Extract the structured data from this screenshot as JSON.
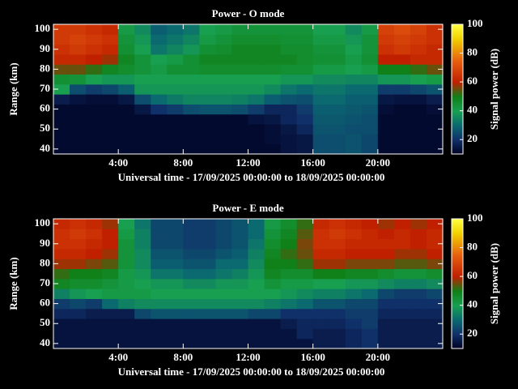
{
  "chart_data": [
    {
      "type": "heatmap",
      "title": "Power - O mode",
      "xlabel": "Universal time - 17/09/2025 00:00:00 to 18/09/2025 00:00:00",
      "ylabel": "Range (km)",
      "colorbar_label": "Signal power (dB)",
      "xlim": [
        0,
        24
      ],
      "ylim": [
        37.5,
        102.5
      ],
      "clim": [
        10,
        100
      ],
      "xticks": [
        {
          "value": 4,
          "label": "4:00"
        },
        {
          "value": 8,
          "label": "8:00"
        },
        {
          "value": 12,
          "label": "12:00"
        },
        {
          "value": 16,
          "label": "16:00"
        },
        {
          "value": 20,
          "label": "20:00"
        }
      ],
      "yticks": [
        40,
        50,
        60,
        70,
        80,
        90,
        100
      ],
      "cticks": [
        20,
        40,
        60,
        80,
        100
      ],
      "colormap": [
        [
          10,
          "#000020"
        ],
        [
          20,
          "#10306a"
        ],
        [
          30,
          "#0a6a70"
        ],
        [
          40,
          "#18a050"
        ],
        [
          50,
          "#108018"
        ],
        [
          60,
          "#c02000"
        ],
        [
          75,
          "#e86010"
        ],
        [
          90,
          "#f0d000"
        ],
        [
          100,
          "#ffff40"
        ]
      ],
      "x": [
        0.5,
        1.5,
        2.5,
        3.5,
        4.5,
        5.5,
        6.5,
        7.5,
        8.5,
        9.5,
        10.5,
        11.5,
        12.5,
        13.5,
        14.5,
        15.5,
        16.5,
        17.5,
        18.5,
        19.5,
        20.5,
        21.5,
        22.5,
        23.5
      ],
      "y": [
        40,
        45,
        50,
        55,
        60,
        65,
        70,
        75,
        80,
        85,
        90,
        95,
        100
      ],
      "z": [
        [
          12,
          12,
          12,
          12,
          12,
          12,
          12,
          12,
          12,
          12,
          12,
          12,
          12,
          12,
          14,
          15,
          25,
          25,
          26,
          24,
          12,
          12,
          12,
          12
        ],
        [
          12,
          12,
          12,
          12,
          12,
          12,
          12,
          12,
          12,
          12,
          12,
          12,
          12,
          13,
          14,
          15,
          25,
          25,
          26,
          24,
          12,
          12,
          12,
          12
        ],
        [
          12,
          12,
          12,
          12,
          12,
          12,
          12,
          12,
          12,
          12,
          12,
          12,
          12,
          13,
          15,
          18,
          26,
          26,
          25,
          25,
          12,
          12,
          12,
          12
        ],
        [
          12,
          12,
          12,
          12,
          12,
          12,
          12,
          12,
          12,
          12,
          12,
          12,
          14,
          15,
          18,
          20,
          27,
          27,
          26,
          25,
          12,
          12,
          12,
          12
        ],
        [
          12,
          12,
          12,
          12,
          12,
          15,
          20,
          22,
          25,
          26,
          26,
          25,
          22,
          18,
          18,
          22,
          28,
          28,
          27,
          26,
          13,
          12,
          12,
          13
        ],
        [
          16,
          14,
          13,
          13,
          15,
          25,
          30,
          33,
          35,
          35,
          35,
          34,
          32,
          28,
          26,
          25,
          30,
          30,
          28,
          28,
          15,
          14,
          14,
          16
        ],
        [
          40,
          25,
          22,
          24,
          28,
          38,
          38,
          38,
          38,
          38,
          38,
          38,
          38,
          36,
          32,
          30,
          32,
          32,
          30,
          30,
          22,
          22,
          24,
          26
        ],
        [
          45,
          44,
          40,
          38,
          38,
          40,
          40,
          40,
          40,
          40,
          40,
          40,
          40,
          40,
          38,
          38,
          36,
          36,
          35,
          35,
          38,
          38,
          40,
          42
        ],
        [
          55,
          55,
          52,
          48,
          46,
          44,
          42,
          45,
          45,
          46,
          46,
          46,
          46,
          46,
          45,
          45,
          42,
          42,
          40,
          42,
          50,
          50,
          52,
          55
        ],
        [
          62,
          62,
          60,
          58,
          48,
          44,
          40,
          42,
          45,
          48,
          48,
          48,
          48,
          48,
          48,
          46,
          45,
          45,
          42,
          45,
          60,
          60,
          62,
          62
        ],
        [
          64,
          66,
          64,
          62,
          45,
          40,
          32,
          35,
          38,
          45,
          46,
          48,
          48,
          48,
          46,
          46,
          44,
          44,
          40,
          44,
          64,
          66,
          64,
          62
        ],
        [
          66,
          68,
          66,
          64,
          44,
          38,
          30,
          32,
          35,
          42,
          44,
          46,
          46,
          46,
          45,
          45,
          42,
          42,
          38,
          44,
          66,
          68,
          66,
          64
        ],
        [
          66,
          66,
          64,
          62,
          42,
          36,
          28,
          30,
          32,
          40,
          42,
          44,
          44,
          44,
          44,
          44,
          40,
          40,
          36,
          42,
          68,
          70,
          68,
          64
        ]
      ]
    },
    {
      "type": "heatmap",
      "title": "Power - E mode",
      "xlabel": "Universal time - 17/09/2025 00:00:00 to 18/09/2025 00:00:00",
      "ylabel": "Range (km)",
      "colorbar_label": "Signal power (dB)",
      "xlim": [
        0,
        24
      ],
      "ylim": [
        37.5,
        102.5
      ],
      "clim": [
        10,
        100
      ],
      "xticks": [
        {
          "value": 4,
          "label": "4:00"
        },
        {
          "value": 8,
          "label": "8:00"
        },
        {
          "value": 12,
          "label": "12:00"
        },
        {
          "value": 16,
          "label": "16:00"
        },
        {
          "value": 20,
          "label": "20:00"
        }
      ],
      "yticks": [
        40,
        50,
        60,
        70,
        80,
        90,
        100
      ],
      "cticks": [
        20,
        40,
        60,
        80,
        100
      ],
      "colormap": [
        [
          10,
          "#000020"
        ],
        [
          20,
          "#10306a"
        ],
        [
          30,
          "#0a6a70"
        ],
        [
          40,
          "#18a050"
        ],
        [
          50,
          "#108018"
        ],
        [
          60,
          "#c02000"
        ],
        [
          75,
          "#e86010"
        ],
        [
          90,
          "#f0d000"
        ],
        [
          100,
          "#ffff40"
        ]
      ],
      "x": [
        0.5,
        1.5,
        2.5,
        3.5,
        4.5,
        5.5,
        6.5,
        7.5,
        8.5,
        9.5,
        10.5,
        11.5,
        12.5,
        13.5,
        14.5,
        15.5,
        16.5,
        17.5,
        18.5,
        19.5,
        20.5,
        21.5,
        22.5,
        23.5
      ],
      "y": [
        40,
        45,
        50,
        55,
        60,
        65,
        70,
        75,
        80,
        85,
        90,
        95,
        100
      ],
      "z": [
        [
          14,
          14,
          14,
          14,
          14,
          14,
          14,
          14,
          14,
          14,
          14,
          14,
          14,
          14,
          14,
          14,
          16,
          16,
          18,
          20,
          16,
          16,
          16,
          16
        ],
        [
          14,
          14,
          14,
          14,
          14,
          14,
          14,
          14,
          14,
          14,
          14,
          14,
          14,
          14,
          14,
          18,
          16,
          16,
          18,
          20,
          16,
          16,
          16,
          16
        ],
        [
          14,
          14,
          14,
          14,
          14,
          14,
          14,
          14,
          14,
          14,
          14,
          14,
          14,
          14,
          16,
          18,
          18,
          18,
          20,
          22,
          16,
          16,
          16,
          16
        ],
        [
          18,
          18,
          16,
          16,
          16,
          24,
          26,
          26,
          26,
          26,
          26,
          26,
          24,
          24,
          20,
          20,
          20,
          20,
          22,
          22,
          18,
          18,
          18,
          18
        ],
        [
          22,
          24,
          22,
          30,
          34,
          36,
          36,
          36,
          36,
          36,
          36,
          36,
          36,
          34,
          32,
          30,
          26,
          26,
          24,
          24,
          20,
          20,
          20,
          20
        ],
        [
          34,
          38,
          40,
          42,
          42,
          42,
          40,
          40,
          40,
          40,
          40,
          40,
          40,
          40,
          38,
          36,
          34,
          34,
          32,
          30,
          24,
          22,
          22,
          24
        ],
        [
          48,
          46,
          46,
          44,
          42,
          40,
          38,
          38,
          36,
          36,
          38,
          38,
          40,
          44,
          42,
          42,
          40,
          40,
          38,
          38,
          36,
          34,
          34,
          36
        ],
        [
          52,
          50,
          50,
          48,
          42,
          38,
          32,
          32,
          30,
          30,
          32,
          34,
          38,
          48,
          46,
          46,
          50,
          50,
          48,
          48,
          46,
          44,
          44,
          46
        ],
        [
          58,
          58,
          56,
          54,
          44,
          36,
          28,
          28,
          26,
          26,
          30,
          30,
          36,
          50,
          50,
          52,
          58,
          58,
          56,
          56,
          56,
          54,
          54,
          56
        ],
        [
          62,
          62,
          60,
          58,
          44,
          36,
          26,
          26,
          24,
          24,
          26,
          28,
          34,
          48,
          52,
          55,
          62,
          62,
          60,
          60,
          60,
          58,
          58,
          60
        ],
        [
          64,
          64,
          62,
          60,
          44,
          34,
          24,
          24,
          22,
          22,
          24,
          26,
          32,
          46,
          50,
          56,
          64,
          64,
          62,
          62,
          62,
          62,
          60,
          62
        ],
        [
          64,
          66,
          64,
          60,
          42,
          34,
          24,
          24,
          22,
          22,
          24,
          26,
          30,
          44,
          48,
          54,
          64,
          66,
          64,
          62,
          60,
          62,
          60,
          62
        ],
        [
          62,
          64,
          62,
          58,
          40,
          32,
          24,
          24,
          22,
          22,
          24,
          26,
          30,
          42,
          46,
          52,
          62,
          64,
          62,
          60,
          58,
          60,
          58,
          60
        ]
      ]
    }
  ]
}
